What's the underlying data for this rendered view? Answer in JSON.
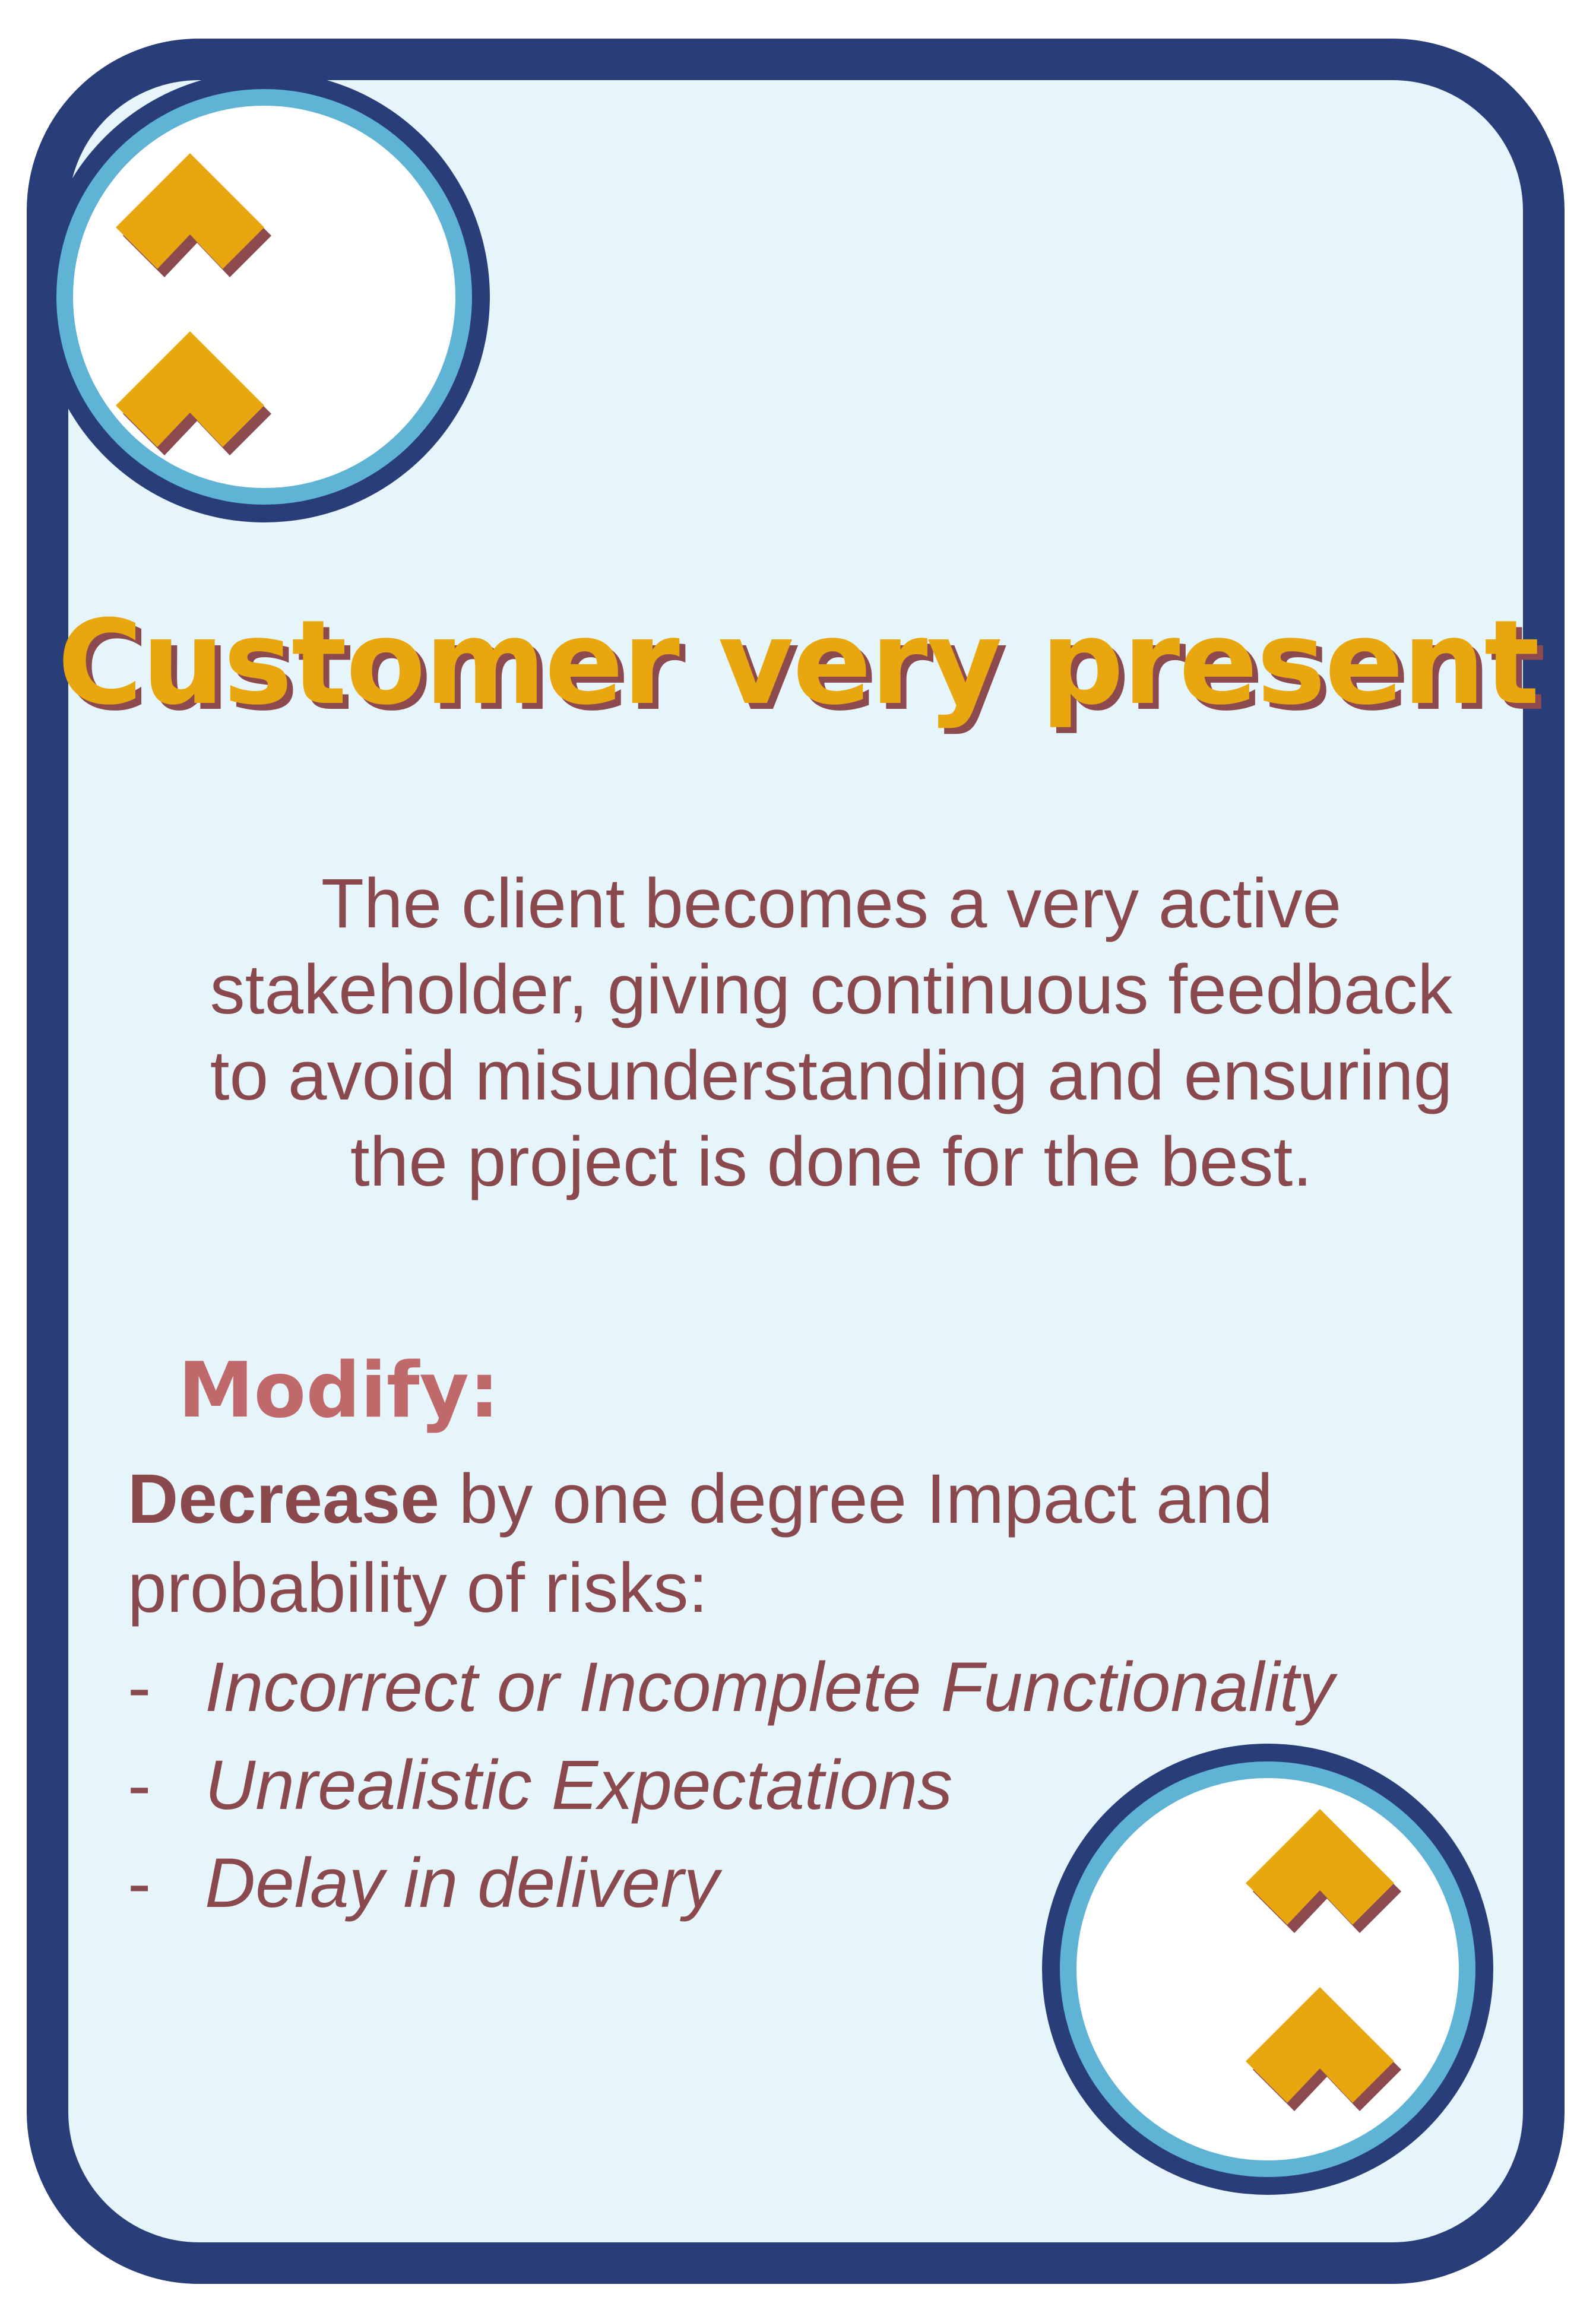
{
  "card": {
    "title": "Customer very present",
    "description": "The client becomes a very active stakeholder, giving continuous feedback to avoid misunderstanding and ensuring the project is done for the best.",
    "modify_heading": "Modify:",
    "effect": {
      "lead": "Decrease",
      "text": " by one degree Impact and probability of risks:"
    },
    "risks": [
      {
        "dash": "-",
        "name": "Incorrect or Incomplete Functionality"
      },
      {
        "dash": "-",
        "name": "Unrealistic Expectations"
      },
      {
        "dash": "-",
        "name": "Delay in delivery"
      }
    ],
    "badge_icon": "double-chevron-up-icon"
  },
  "colors": {
    "frame": "#293d78",
    "ring": "#5fb4d6",
    "background": "#e6f4fc",
    "title": "#e8a70f",
    "shadow": "#8c4a4e",
    "text": "#8a4a4d",
    "heading": "#c0696b"
  }
}
